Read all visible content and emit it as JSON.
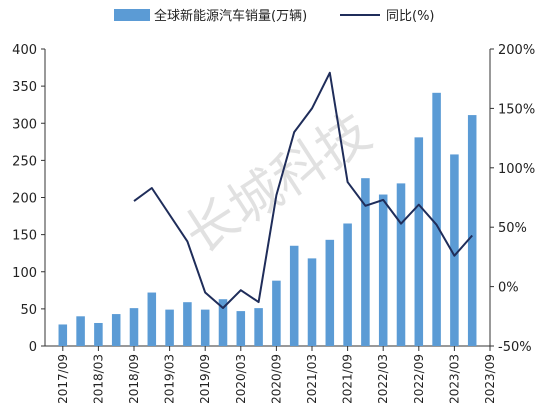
{
  "chart_data": {
    "type": "bar",
    "watermark": "长城科技",
    "legend": [
      "全球新能源汽车销量(万辆)",
      "同比(%)"
    ],
    "bar_color": "#5b9bd5",
    "line_color": "#1f2d5a",
    "x_tick_labels": [
      "2017/09",
      "2018/03",
      "2018/09",
      "2019/03",
      "2019/09",
      "2020/03",
      "2020/09",
      "2021/03",
      "2021/09",
      "2022/03",
      "2022/09",
      "2023/03",
      "2023/09"
    ],
    "left_axis": {
      "ylim": [
        0,
        400
      ],
      "ticks": [
        "0",
        "50",
        "100",
        "150",
        "200",
        "250",
        "300",
        "350",
        "400"
      ]
    },
    "right_axis": {
      "ylim": [
        -50,
        200
      ],
      "ticks": [
        "-50%",
        "0%",
        "50%",
        "100%",
        "150%",
        "200%"
      ]
    },
    "categories": [
      "2017/09",
      "2017/12",
      "2018/03",
      "2018/06",
      "2018/09",
      "2018/12",
      "2019/03",
      "2019/06",
      "2019/09",
      "2019/12",
      "2020/03",
      "2020/06",
      "2020/09",
      "2020/12",
      "2021/03",
      "2021/06",
      "2021/09",
      "2021/12",
      "2022/03",
      "2022/06",
      "2022/09",
      "2022/12",
      "2023/03",
      "2023/06"
    ],
    "series": [
      {
        "name": "全球新能源汽车销量(万辆)",
        "type": "bar",
        "axis": "left",
        "values": [
          29,
          40,
          31,
          43,
          51,
          72,
          49,
          59,
          49,
          63,
          47,
          51,
          88,
          135,
          118,
          143,
          165,
          226,
          204,
          219,
          281,
          341,
          258,
          311
        ]
      },
      {
        "name": "同比(%)",
        "type": "line",
        "axis": "right",
        "values": [
          null,
          null,
          null,
          null,
          72,
          83,
          null,
          38,
          -5,
          -18,
          -3,
          -13,
          77,
          130,
          150,
          180,
          88,
          68,
          73,
          53,
          69,
          52,
          26,
          43
        ]
      }
    ]
  }
}
